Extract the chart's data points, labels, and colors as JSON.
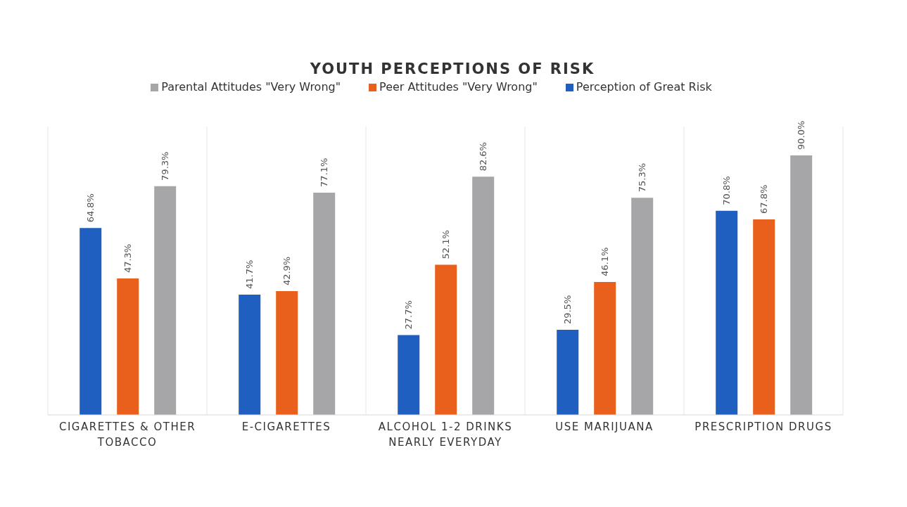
{
  "chart_data": {
    "type": "bar",
    "title": "YOUTH PERCEPTIONS OF RISK",
    "categories": [
      "CIGARETTES & OTHER TOBACCO",
      "E-CIGARETTES",
      "ALCOHOL 1-2 DRINKS NEARLY EVERYDAY",
      "USE MARIJUANA",
      "PRESCRIPTION DRUGS"
    ],
    "series": [
      {
        "name": "Perception of Great Risk",
        "color": "#1f5fbf",
        "values": [
          64.8,
          41.7,
          27.7,
          29.5,
          70.8
        ],
        "value_labels": [
          "64.8%",
          "41.7%",
          "27.7%",
          "29.5%",
          "70.8%"
        ]
      },
      {
        "name": "Peer Attitudes \"Very Wrong\"",
        "color": "#e8601c",
        "values": [
          47.3,
          42.9,
          52.1,
          46.1,
          67.8
        ],
        "value_labels": [
          "47.3%",
          "42.9%",
          "52.1%",
          "46.1%",
          "67.8%"
        ]
      },
      {
        "name": "Parental Attitudes \"Very Wrong\"",
        "color": "#a6a6a8",
        "values": [
          79.3,
          77.1,
          82.6,
          75.3,
          90.0
        ],
        "value_labels": [
          "79.3%",
          "77.1%",
          "82.6%",
          "75.3%",
          "90.0%"
        ]
      }
    ],
    "grid": "x",
    "legend": "top"
  }
}
